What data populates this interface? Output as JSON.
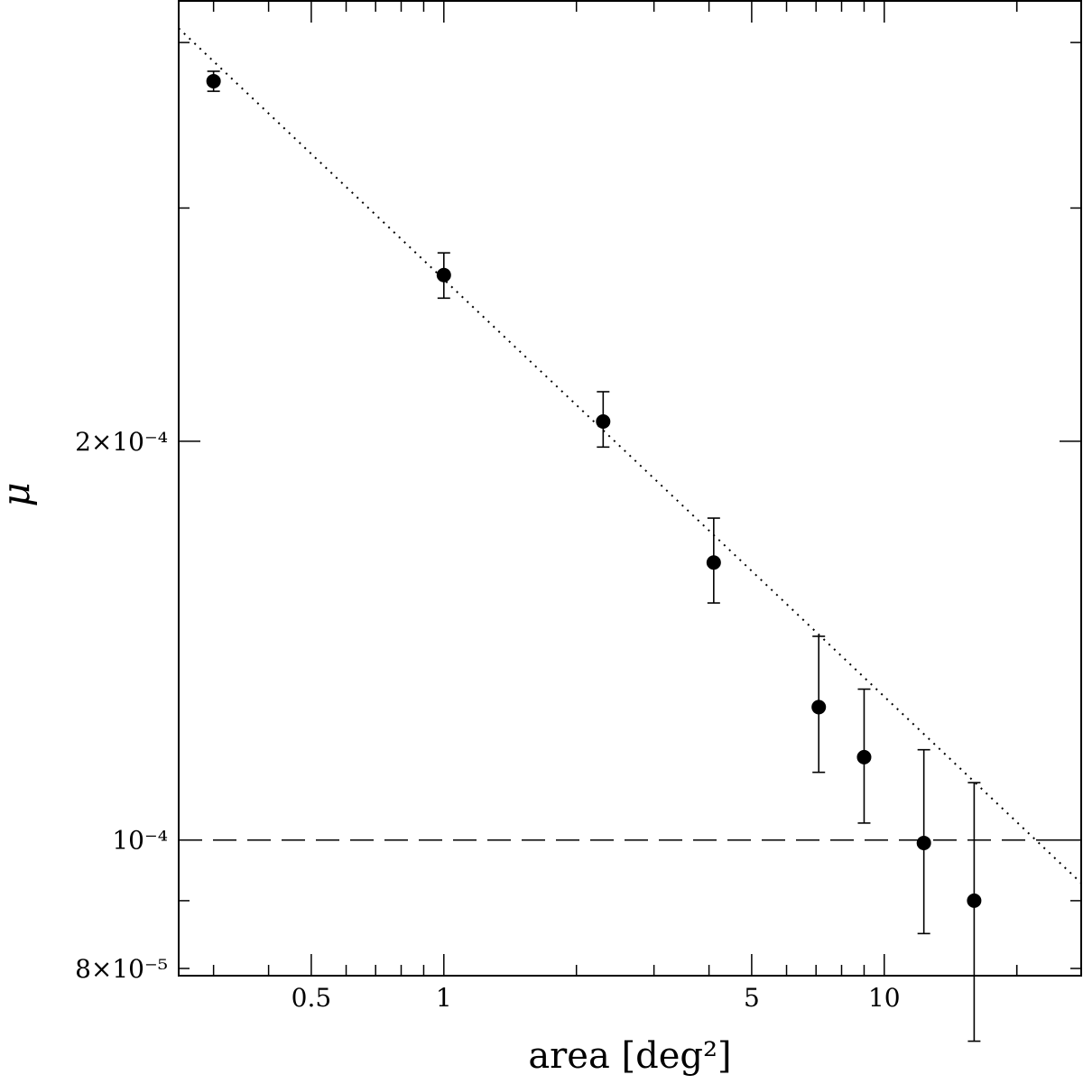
{
  "chart_data": {
    "type": "scatter",
    "title": "",
    "xlabel": "area [deg²]",
    "ylabel": "μ",
    "xscale": "log",
    "yscale": "log",
    "xlim": [
      0.25,
      28
    ],
    "ylim": [
      7.9e-05,
      0.00043
    ],
    "x_tick_labels": [
      {
        "value": 0.5,
        "label": "0.5"
      },
      {
        "value": 1,
        "label": "1"
      },
      {
        "value": 5,
        "label": "5"
      },
      {
        "value": 10,
        "label": "10"
      }
    ],
    "y_tick_labels": [
      {
        "value": 0.0002,
        "label": "2×10⁻⁴"
      },
      {
        "value": 0.0001,
        "label": "10⁻⁴"
      },
      {
        "value": 8e-05,
        "label": "8×10⁻⁵"
      }
    ],
    "series": [
      {
        "points": [
          {
            "x": 0.3,
            "y": 0.000374,
            "err_low": 6.5e-06,
            "err_high": 6.5e-06
          },
          {
            "x": 1.0,
            "y": 0.000267,
            "err_low": 1.05e-05,
            "err_high": 1.05e-05
          },
          {
            "x": 2.3,
            "y": 0.000207,
            "err_low": 9e-06,
            "err_high": 1.1e-05
          },
          {
            "x": 4.1,
            "y": 0.000162,
            "err_low": 1.1e-05,
            "err_high": 1.3e-05
          },
          {
            "x": 7.1,
            "y": 0.000126,
            "err_low": 1.35e-05,
            "err_high": 1.65e-05
          },
          {
            "x": 9.0,
            "y": 0.0001155,
            "err_low": 1.25e-05,
            "err_high": 1.45e-05
          },
          {
            "x": 12.3,
            "y": 9.95e-05,
            "err_low": 1.45e-05,
            "err_high": 1.75e-05
          },
          {
            "x": 16.0,
            "y": 9e-05,
            "err_low": 1.95e-05,
            "err_high": 2.05e-05
          }
        ]
      }
    ],
    "fit_line": {
      "style": "dotted",
      "from": {
        "x": 0.25,
        "y": 0.00041
      },
      "to": {
        "x": 28,
        "y": 9.28e-05
      }
    },
    "reference_line": {
      "style": "dashed",
      "y": 0.0001
    },
    "grid": false
  }
}
